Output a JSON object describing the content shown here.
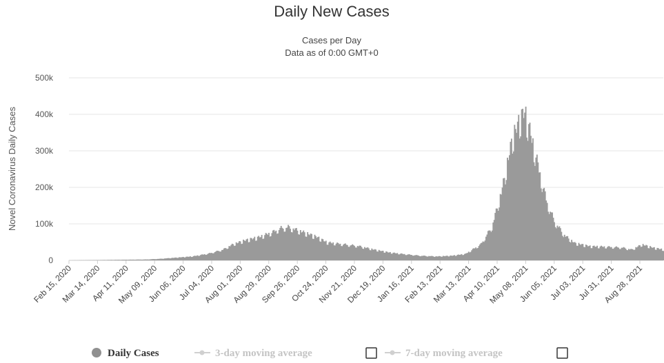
{
  "chart_data": {
    "type": "bar",
    "title": "Daily New Cases",
    "subtitle_lines": [
      "Cases per Day",
      "Data as of 0:00 GMT+0"
    ],
    "xlabel": "",
    "ylabel": "Novel Coronavirus Daily Cases",
    "ylim": [
      0,
      500000
    ],
    "y_ticks": [
      {
        "value": 0,
        "label": "0"
      },
      {
        "value": 100000,
        "label": "100k"
      },
      {
        "value": 200000,
        "label": "200k"
      },
      {
        "value": 300000,
        "label": "300k"
      },
      {
        "value": 400000,
        "label": "400k"
      },
      {
        "value": 500000,
        "label": "500k"
      }
    ],
    "x_range": [
      "2020-02-15",
      "2021-09-20"
    ],
    "x_tick_labels": [
      "Feb 15, 2020",
      "Mar 14, 2020",
      "Apr 11, 2020",
      "May 09, 2020",
      "Jun 06, 2020",
      "Jul 04, 2020",
      "Aug 01, 2020",
      "Aug 29, 2020",
      "Sep 26, 2020",
      "Oct 24, 2020",
      "Nov 21, 2020",
      "Dec 19, 2020",
      "Jan 16, 2021",
      "Feb 13, 2021",
      "Mar 13, 2021",
      "Apr 10, 2021",
      "May 08, 2021",
      "Jun 05, 2021",
      "Jul 03, 2021",
      "Jul 31, 2021",
      "Aug 28, 2021"
    ],
    "grid": true,
    "legend_position": "bottom",
    "series": [
      {
        "name": "Daily Cases",
        "color": "#9a9a9a",
        "points": [
          [
            "2020-02-15",
            0
          ],
          [
            "2020-04-01",
            1500
          ],
          [
            "2020-05-01",
            2500
          ],
          [
            "2020-05-15",
            4500
          ],
          [
            "2020-06-01",
            8000
          ],
          [
            "2020-06-15",
            11000
          ],
          [
            "2020-07-01",
            19000
          ],
          [
            "2020-07-15",
            30000
          ],
          [
            "2020-07-25",
            45000
          ],
          [
            "2020-08-05",
            55000
          ],
          [
            "2020-08-20",
            65000
          ],
          [
            "2020-09-01",
            78000
          ],
          [
            "2020-09-10",
            90000
          ],
          [
            "2020-09-17",
            93000
          ],
          [
            "2020-09-25",
            85000
          ],
          [
            "2020-10-05",
            75000
          ],
          [
            "2020-10-15",
            65000
          ],
          [
            "2020-10-25",
            50000
          ],
          [
            "2020-11-10",
            45000
          ],
          [
            "2020-11-25",
            40000
          ],
          [
            "2020-12-10",
            30000
          ],
          [
            "2020-12-25",
            22000
          ],
          [
            "2021-01-10",
            17000
          ],
          [
            "2021-01-25",
            13000
          ],
          [
            "2021-02-10",
            11000
          ],
          [
            "2021-02-25",
            13000
          ],
          [
            "2021-03-10",
            18000
          ],
          [
            "2021-03-25",
            45000
          ],
          [
            "2021-04-05",
            95000
          ],
          [
            "2021-04-15",
            200000
          ],
          [
            "2021-04-25",
            340000
          ],
          [
            "2021-05-03",
            395000
          ],
          [
            "2021-05-07",
            412000
          ],
          [
            "2021-05-12",
            360000
          ],
          [
            "2021-05-20",
            265000
          ],
          [
            "2021-05-28",
            170000
          ],
          [
            "2021-06-05",
            110000
          ],
          [
            "2021-06-15",
            70000
          ],
          [
            "2021-06-25",
            48000
          ],
          [
            "2021-07-10",
            39000
          ],
          [
            "2021-07-25",
            38000
          ],
          [
            "2021-08-10",
            36000
          ],
          [
            "2021-08-20",
            30000
          ],
          [
            "2021-08-30",
            44000
          ],
          [
            "2021-09-10",
            35000
          ],
          [
            "2021-09-20",
            30000
          ]
        ]
      }
    ]
  },
  "legend": {
    "items": [
      {
        "label": "Daily Cases",
        "color": "#909090",
        "text_color": "#333333"
      },
      {
        "label": "3-day moving average",
        "color": "#d0d0d0",
        "text_color": "#c4c4c4"
      },
      {
        "label": "7-day moving average",
        "color": "#d0d0d0",
        "text_color": "#c4c4c4"
      }
    ]
  }
}
